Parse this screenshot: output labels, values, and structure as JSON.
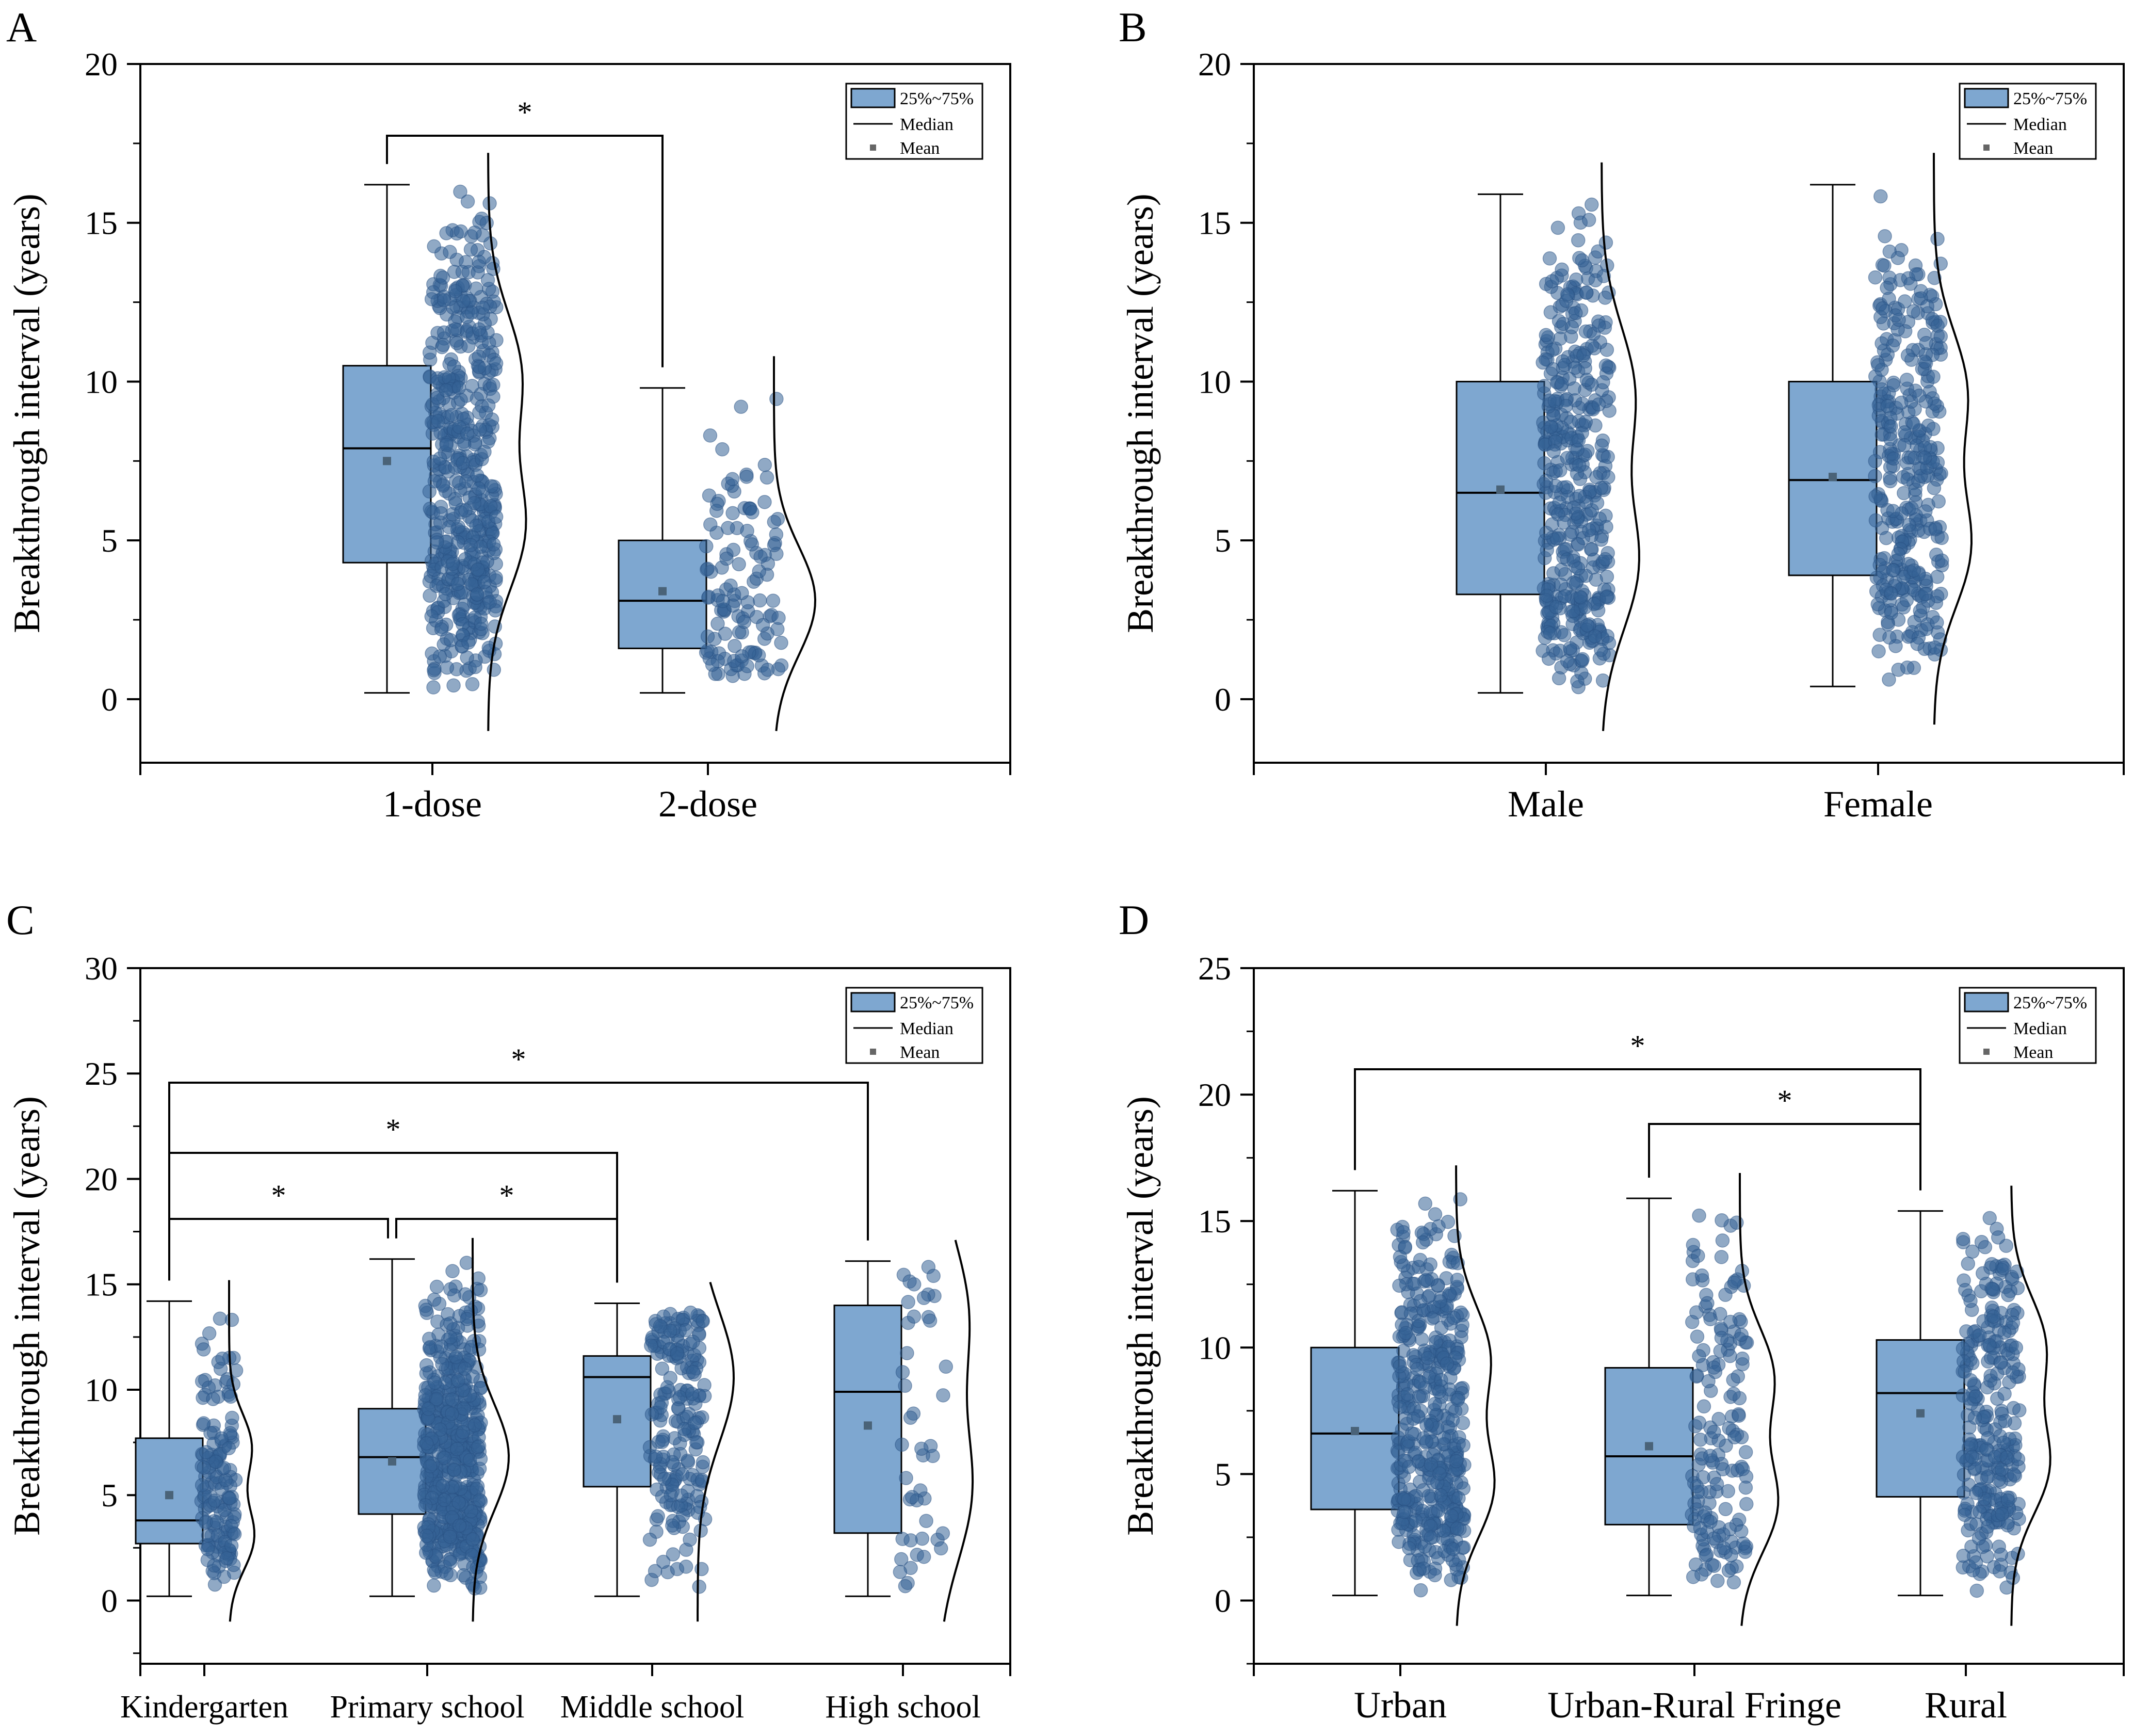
{
  "chart_data": [
    {
      "type": "boxplot",
      "panel_label": "A",
      "ylabel": "Breakthrough interval (years)",
      "ylim": [
        -2,
        20
      ],
      "yticks": [
        "0",
        "5",
        "10",
        "15",
        "20"
      ],
      "categories": [
        "1-dose",
        "2-dose"
      ],
      "legend": [
        "25%~75%",
        "Median",
        "Mean"
      ],
      "boxes": [
        {
          "whisker_low": 0.2,
          "q1": 4.3,
          "median": 7.9,
          "q3": 10.5,
          "whisker_high": 16.2,
          "mean": 7.5
        },
        {
          "whisker_low": 0.2,
          "q1": 1.6,
          "median": 3.1,
          "q3": 5.0,
          "whisker_high": 9.8,
          "mean": 3.4
        }
      ],
      "significance": [
        {
          "from": 0,
          "to": 1,
          "label": "*"
        }
      ]
    },
    {
      "type": "boxplot",
      "panel_label": "B",
      "ylabel": "Breakthrough interval (years)",
      "ylim": [
        -2,
        20
      ],
      "yticks": [
        "0",
        "5",
        "10",
        "15",
        "20"
      ],
      "categories": [
        "Male",
        "Female"
      ],
      "legend": [
        "25%~75%",
        "Median",
        "Mean"
      ],
      "boxes": [
        {
          "whisker_low": 0.2,
          "q1": 3.3,
          "median": 6.5,
          "q3": 10.0,
          "whisker_high": 15.9,
          "mean": 6.6
        },
        {
          "whisker_low": 0.4,
          "q1": 3.9,
          "median": 6.9,
          "q3": 10.0,
          "whisker_high": 16.2,
          "mean": 7.0
        }
      ],
      "significance": []
    },
    {
      "type": "boxplot",
      "panel_label": "C",
      "ylabel": "Breakthrough interval (years)",
      "ylim": [
        -3,
        30
      ],
      "yticks": [
        "0",
        "5",
        "10",
        "15",
        "20",
        "25",
        "30"
      ],
      "categories": [
        "Kindergarten",
        "Primary school",
        "Middle school",
        "High school"
      ],
      "legend": [
        "25%~75%",
        "Median",
        "Mean"
      ],
      "boxes": [
        {
          "whisker_low": 0.2,
          "q1": 2.7,
          "median": 3.8,
          "q3": 7.7,
          "whisker_high": 14.2,
          "mean": 5.0
        },
        {
          "whisker_low": 0.2,
          "q1": 4.1,
          "median": 6.8,
          "q3": 9.1,
          "whisker_high": 16.2,
          "mean": 6.6
        },
        {
          "whisker_low": 0.2,
          "q1": 5.4,
          "median": 10.6,
          "q3": 11.6,
          "whisker_high": 14.1,
          "mean": 8.6
        },
        {
          "whisker_low": 0.2,
          "q1": 3.2,
          "median": 9.9,
          "q3": 14.0,
          "whisker_high": 16.1,
          "mean": 8.3
        }
      ],
      "significance": [
        {
          "from": 0,
          "to": 1,
          "label": "*"
        },
        {
          "from": 1,
          "to": 2,
          "label": "*"
        },
        {
          "from": 0,
          "to": 2,
          "label": "*"
        },
        {
          "from": 0,
          "to": 3,
          "label": "*"
        }
      ]
    },
    {
      "type": "boxplot",
      "panel_label": "D",
      "ylabel": "Breakthrough interval (years)",
      "ylim": [
        -2.5,
        25
      ],
      "yticks": [
        "0",
        "5",
        "10",
        "15",
        "20",
        "25"
      ],
      "categories": [
        "Urban",
        "Urban-Rural Fringe",
        "Rural"
      ],
      "legend": [
        "25%~75%",
        "Median",
        "Mean"
      ],
      "boxes": [
        {
          "whisker_low": 0.2,
          "q1": 3.6,
          "median": 6.6,
          "q3": 10.0,
          "whisker_high": 16.2,
          "mean": 6.7
        },
        {
          "whisker_low": 0.2,
          "q1": 3.0,
          "median": 5.7,
          "q3": 9.2,
          "whisker_high": 15.9,
          "mean": 6.1
        },
        {
          "whisker_low": 0.2,
          "q1": 4.1,
          "median": 8.2,
          "q3": 10.3,
          "whisker_high": 15.4,
          "mean": 7.4
        }
      ],
      "significance": [
        {
          "from": 1,
          "to": 2,
          "label": "*"
        },
        {
          "from": 0,
          "to": 2,
          "label": "*"
        }
      ]
    }
  ]
}
